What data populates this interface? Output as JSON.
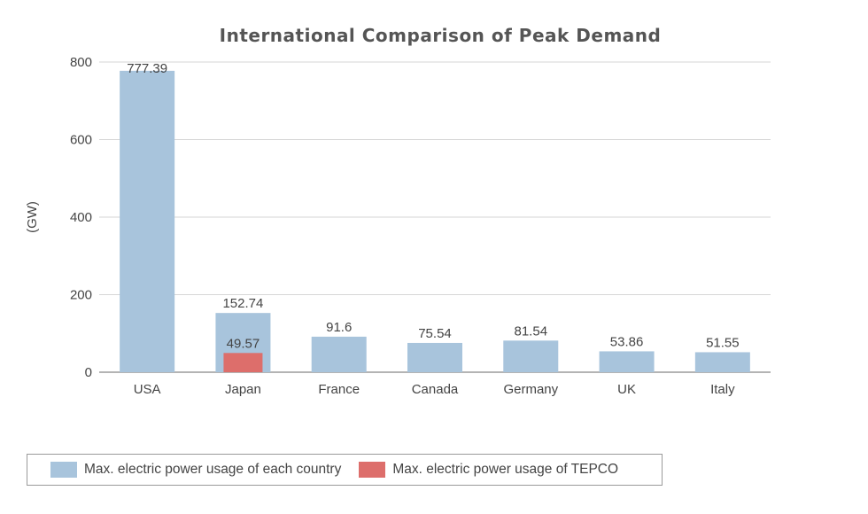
{
  "chart_data": {
    "type": "bar",
    "title": "International Comparison of Peak Demand",
    "ylabel": "(GW)",
    "xlabel": "",
    "ylim": [
      0,
      800
    ],
    "yticks": [
      0,
      200,
      400,
      600,
      800
    ],
    "grid": true,
    "legend_position": "bottom-left",
    "categories": [
      "USA",
      "Japan",
      "France",
      "Canada",
      "Germany",
      "UK",
      "Italy"
    ],
    "series": [
      {
        "name": "Max. electric power usage of each country",
        "color": "#a8c4dc",
        "values": [
          777.39,
          152.74,
          91.6,
          75.54,
          81.54,
          53.86,
          51.55
        ],
        "labels": [
          "777.39",
          "152.74",
          "91.6",
          "75.54",
          "81.54",
          "53.86",
          "51.55"
        ]
      },
      {
        "name": "Max. electric power usage of TEPCO",
        "color": "#dd6e6b",
        "values": [
          null,
          49.57,
          null,
          null,
          null,
          null,
          null
        ],
        "labels": [
          null,
          "49.57",
          null,
          null,
          null,
          null,
          null
        ]
      }
    ]
  }
}
